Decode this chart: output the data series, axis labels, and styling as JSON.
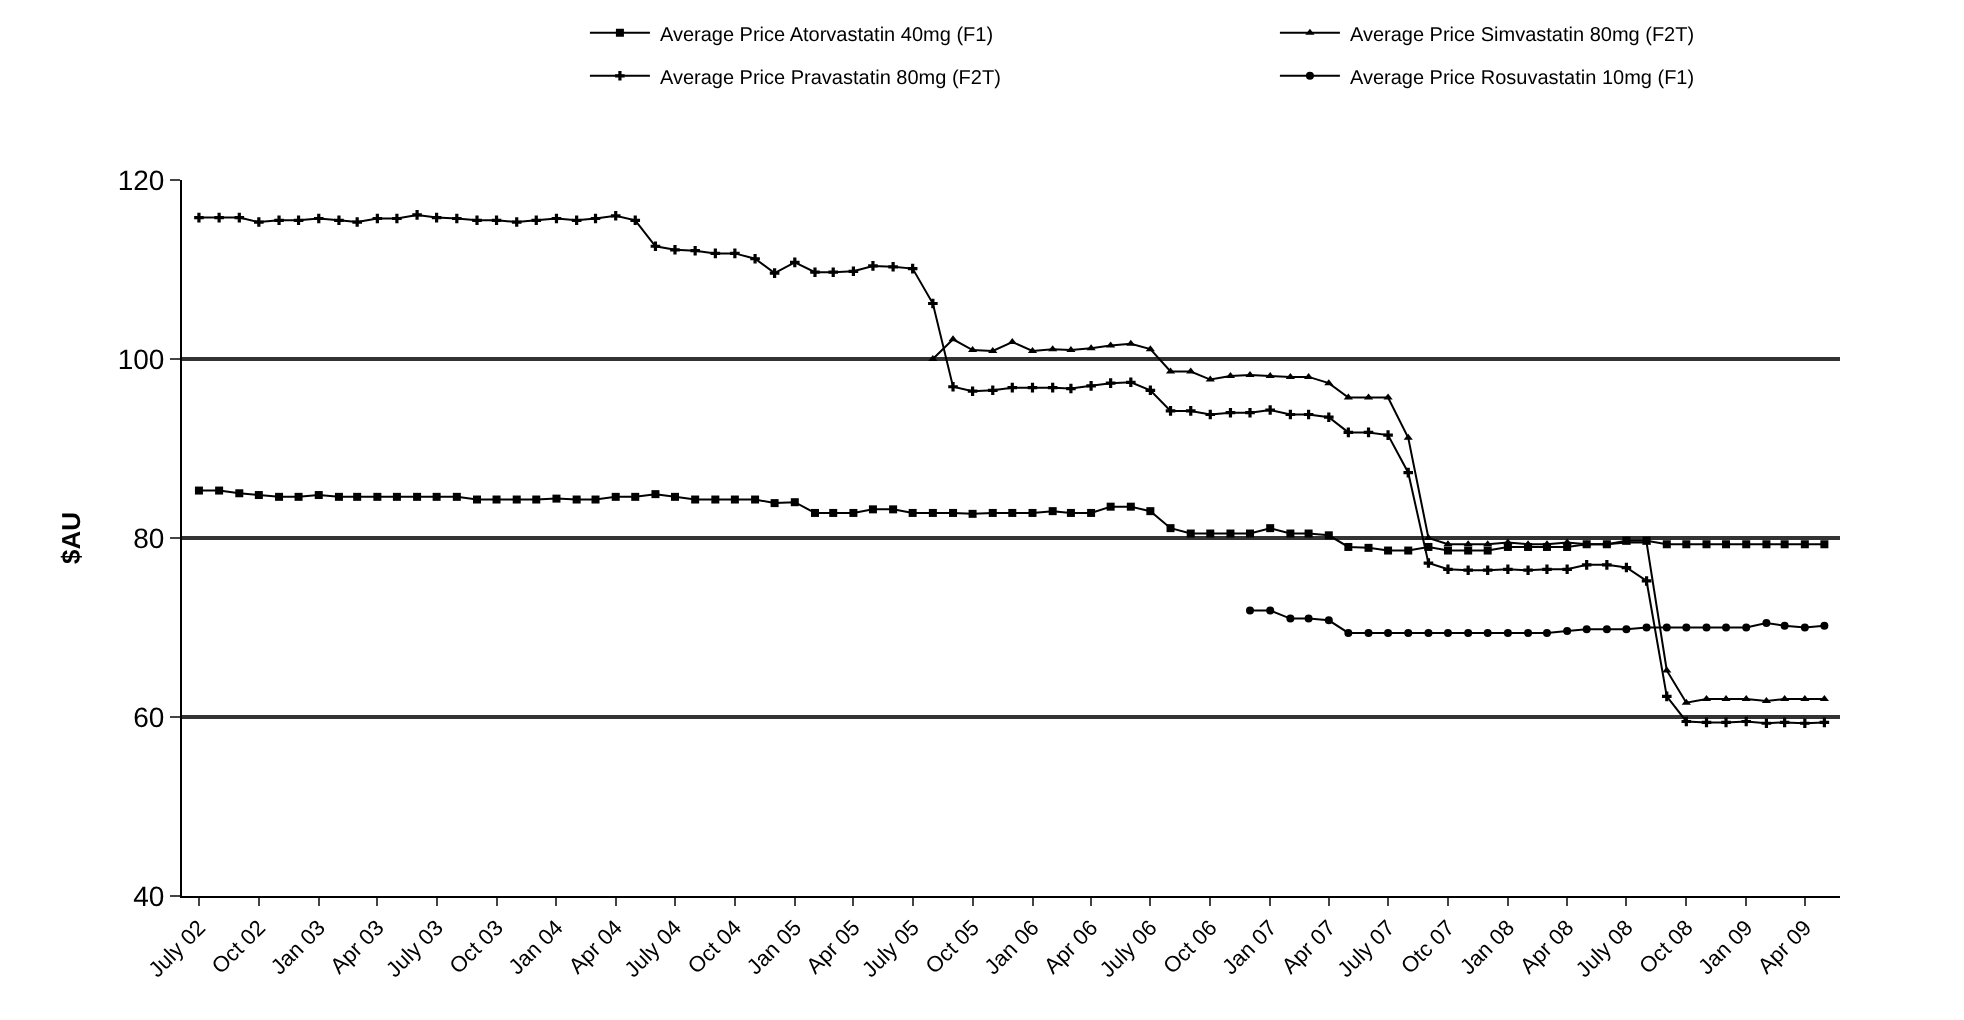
{
  "chart_data": {
    "type": "line",
    "ylabel": "$AU",
    "legend": "top",
    "grid": "y",
    "x": [
      "2002-07",
      "2002-08",
      "2002-09",
      "2002-10",
      "2002-11",
      "2002-12",
      "2003-01",
      "2003-02",
      "2003-03",
      "2003-04",
      "2003-05",
      "2003-06",
      "2003-07",
      "2003-08",
      "2003-09",
      "2003-10",
      "2003-11",
      "2003-12",
      "2004-01",
      "2004-02",
      "2004-03",
      "2004-04",
      "2004-05",
      "2004-06",
      "2004-07",
      "2004-08",
      "2004-09",
      "2004-10",
      "2004-11",
      "2004-12",
      "2005-01",
      "2005-02",
      "2005-03",
      "2005-04",
      "2005-05",
      "2005-06",
      "2005-07",
      "2005-08",
      "2005-09",
      "2005-10",
      "2005-11",
      "2005-12",
      "2006-01",
      "2006-02",
      "2006-03",
      "2006-04",
      "2006-05",
      "2006-06",
      "2006-07",
      "2006-08",
      "2006-09",
      "2006-10",
      "2006-11",
      "2006-12",
      "2007-01",
      "2007-02",
      "2007-03",
      "2007-04",
      "2007-05",
      "2007-06",
      "2007-07",
      "2007-08",
      "2007-09",
      "2007-10",
      "2007-11",
      "2007-12",
      "2008-01",
      "2008-02",
      "2008-03",
      "2008-04",
      "2008-05",
      "2008-06",
      "2008-07",
      "2008-08",
      "2008-09",
      "2008-10",
      "2008-11",
      "2008-12",
      "2009-01",
      "2009-02",
      "2009-03",
      "2009-04",
      "2009-05"
    ],
    "xlim": [
      "2002-06-05",
      "2009-05-25"
    ],
    "ylim": [
      40,
      120
    ],
    "yticks": [
      40,
      60,
      80,
      100,
      120
    ],
    "xticks": [
      {
        "value": "2002-07",
        "label": "July 02"
      },
      {
        "value": "2002-10",
        "label": "Oct 02"
      },
      {
        "value": "2003-01",
        "label": "Jan 03"
      },
      {
        "value": "2003-04",
        "label": "Apr 03"
      },
      {
        "value": "2003-07",
        "label": "July 03"
      },
      {
        "value": "2003-10",
        "label": "Oct 03"
      },
      {
        "value": "2004-01",
        "label": "Jan 04"
      },
      {
        "value": "2004-04",
        "label": "Apr 04"
      },
      {
        "value": "2004-07",
        "label": "July 04"
      },
      {
        "value": "2004-10",
        "label": "Oct 04"
      },
      {
        "value": "2005-01",
        "label": "Jan 05"
      },
      {
        "value": "2005-04",
        "label": "Apr 05"
      },
      {
        "value": "2005-07",
        "label": "July 05"
      },
      {
        "value": "2005-10",
        "label": "Oct 05"
      },
      {
        "value": "2006-01",
        "label": "Jan 06"
      },
      {
        "value": "2006-04",
        "label": "Apr 06"
      },
      {
        "value": "2006-07",
        "label": "July 06"
      },
      {
        "value": "2006-10",
        "label": "Oct 06"
      },
      {
        "value": "2007-01",
        "label": "Jan 07"
      },
      {
        "value": "2007-04",
        "label": "Apr 07"
      },
      {
        "value": "2007-07",
        "label": "July 07"
      },
      {
        "value": "2007-10",
        "label": "Otc 07"
      },
      {
        "value": "2008-01",
        "label": "Jan 08"
      },
      {
        "value": "2008-04",
        "label": "Apr 08"
      },
      {
        "value": "2008-07",
        "label": "July 08"
      },
      {
        "value": "2008-10",
        "label": "Oct 08"
      },
      {
        "value": "2009-01",
        "label": "Jan 09"
      },
      {
        "value": "2009-04",
        "label": "Apr 09"
      }
    ],
    "series": [
      {
        "name": "Average Price Atorvastatin 40mg (F1)",
        "color": "#000000",
        "marker": "square",
        "values": [
          85.3,
          85.3,
          85.0,
          84.8,
          84.6,
          84.6,
          84.8,
          84.6,
          84.6,
          84.6,
          84.6,
          84.6,
          84.6,
          84.6,
          84.3,
          84.3,
          84.3,
          84.3,
          84.4,
          84.3,
          84.3,
          84.6,
          84.6,
          84.9,
          84.6,
          84.3,
          84.3,
          84.3,
          84.3,
          83.9,
          84.0,
          82.8,
          82.8,
          82.8,
          83.2,
          83.2,
          82.8,
          82.8,
          82.8,
          82.7,
          82.8,
          82.8,
          82.8,
          83.0,
          82.8,
          82.8,
          83.5,
          83.5,
          83.0,
          81.1,
          80.5,
          80.5,
          80.5,
          80.5,
          81.1,
          80.5,
          80.5,
          80.3,
          79.0,
          78.9,
          78.6,
          78.6,
          79.0,
          78.6,
          78.6,
          78.6,
          79.0,
          79.0,
          79.0,
          79.0,
          79.3,
          79.3,
          79.7,
          79.7,
          79.3,
          79.3,
          79.3,
          79.3,
          79.3,
          79.3,
          79.3,
          79.3,
          79.3
        ]
      },
      {
        "name": "Average Price Simvastatin 80mg (F2T)",
        "color": "#000000",
        "marker": "triangle",
        "values": [
          null,
          null,
          null,
          null,
          null,
          null,
          null,
          null,
          null,
          null,
          null,
          null,
          null,
          null,
          null,
          null,
          null,
          null,
          null,
          null,
          null,
          null,
          null,
          null,
          null,
          null,
          null,
          null,
          null,
          null,
          null,
          null,
          null,
          null,
          null,
          null,
          null,
          100.0,
          102.2,
          101.0,
          100.9,
          101.9,
          100.9,
          101.1,
          101.0,
          101.2,
          101.5,
          101.7,
          101.1,
          98.6,
          98.6,
          97.7,
          98.1,
          98.2,
          98.1,
          98.0,
          98.0,
          97.3,
          95.7,
          95.7,
          95.7,
          91.2,
          80.0,
          79.3,
          79.3,
          79.3,
          79.5,
          79.3,
          79.3,
          79.5,
          79.3,
          79.3,
          79.5,
          79.5,
          65.2,
          61.6,
          62.0,
          62.0,
          62.0,
          61.8,
          62.0,
          62.0,
          62.0
        ]
      },
      {
        "name": "Average Price Pravastatin 80mg (F2T)",
        "color": "#000000",
        "marker": "cross",
        "values": [
          115.8,
          115.8,
          115.8,
          115.3,
          115.5,
          115.5,
          115.7,
          115.5,
          115.3,
          115.7,
          115.7,
          116.1,
          115.8,
          115.7,
          115.5,
          115.5,
          115.3,
          115.5,
          115.7,
          115.5,
          115.7,
          116.0,
          115.5,
          112.6,
          112.2,
          112.1,
          111.8,
          111.8,
          111.2,
          109.6,
          110.8,
          109.7,
          109.7,
          109.8,
          110.4,
          110.3,
          110.1,
          106.2,
          96.9,
          96.4,
          96.5,
          96.8,
          96.8,
          96.8,
          96.7,
          97.0,
          97.3,
          97.4,
          96.5,
          94.2,
          94.2,
          93.8,
          94.0,
          94.0,
          94.3,
          93.8,
          93.8,
          93.5,
          91.8,
          91.8,
          91.5,
          87.3,
          77.2,
          76.5,
          76.4,
          76.4,
          76.5,
          76.4,
          76.5,
          76.5,
          77.0,
          77.0,
          76.7,
          75.2,
          62.3,
          59.5,
          59.4,
          59.4,
          59.5,
          59.3,
          59.4,
          59.3,
          59.4
        ]
      },
      {
        "name": "Average Price Rosuvastatin 10mg (F1)",
        "color": "#000000",
        "marker": "circle",
        "values": [
          null,
          null,
          null,
          null,
          null,
          null,
          null,
          null,
          null,
          null,
          null,
          null,
          null,
          null,
          null,
          null,
          null,
          null,
          null,
          null,
          null,
          null,
          null,
          null,
          null,
          null,
          null,
          null,
          null,
          null,
          null,
          null,
          null,
          null,
          null,
          null,
          null,
          null,
          null,
          null,
          null,
          null,
          null,
          null,
          null,
          null,
          null,
          null,
          null,
          null,
          null,
          null,
          null,
          71.9,
          71.9,
          71.0,
          71.0,
          70.8,
          69.4,
          69.4,
          69.4,
          69.4,
          69.4,
          69.4,
          69.4,
          69.4,
          69.4,
          69.4,
          69.4,
          69.6,
          69.8,
          69.8,
          69.8,
          70.0,
          70.0,
          70.0,
          70.0,
          70.0,
          70.0,
          70.5,
          70.2,
          70.0,
          70.2
        ]
      }
    ]
  }
}
